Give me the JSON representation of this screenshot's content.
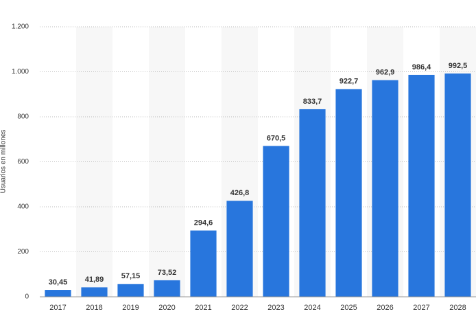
{
  "chart_data": {
    "type": "bar",
    "y_label": "Usuarios en millones",
    "categories": [
      "2017",
      "2018",
      "2019",
      "2020",
      "2021",
      "2022",
      "2023",
      "2024",
      "2025",
      "2026",
      "2027",
      "2028"
    ],
    "values": [
      30.45,
      41.89,
      57.15,
      73.52,
      294.6,
      426.8,
      670.5,
      833.7,
      922.7,
      962.9,
      986.4,
      992.5
    ],
    "value_labels": [
      "30,45",
      "41,89",
      "57,15",
      "73,52",
      "294,6",
      "426,8",
      "670,5",
      "833,7",
      "922,7",
      "962,9",
      "986,4",
      "992,5"
    ],
    "color": "#2876dd",
    "ylim": [
      0,
      1200
    ],
    "yticks": [
      0,
      200,
      400,
      600,
      800,
      {
        "value": 1000,
        "label": "1.000"
      },
      {
        "value": 1200,
        "label": "1.200"
      }
    ],
    "grid": true
  }
}
